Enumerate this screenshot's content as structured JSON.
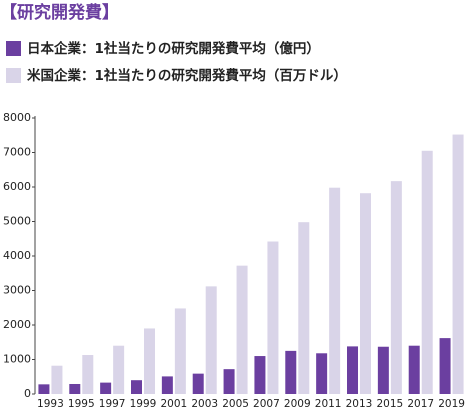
{
  "chart_data": {
    "type": "bar",
    "title": "【研究開発費】",
    "categories": [
      "1993",
      "1995",
      "1997",
      "1999",
      "2001",
      "2003",
      "2005",
      "2007",
      "2009",
      "2011",
      "2013",
      "2015",
      "2017",
      "2019"
    ],
    "series": [
      {
        "name": "日本企業：1社当たりの研究開発費平均（億円）",
        "color": "#6b3fa0",
        "values": [
          280,
          290,
          330,
          400,
          510,
          590,
          720,
          1100,
          1250,
          1180,
          1380,
          1370,
          1400,
          1620
        ]
      },
      {
        "name": "米国企業：1社当たりの研究開発費平均（百万ドル）",
        "color": "#d9d4e8",
        "values": [
          820,
          1130,
          1400,
          1900,
          2480,
          3120,
          3720,
          4420,
          4980,
          5980,
          5820,
          6170,
          7050,
          7520
        ]
      }
    ],
    "ylim": [
      0,
      8000
    ],
    "yticks": [
      0,
      1000,
      2000,
      3000,
      4000,
      5000,
      6000,
      7000,
      8000
    ],
    "grid": false
  }
}
